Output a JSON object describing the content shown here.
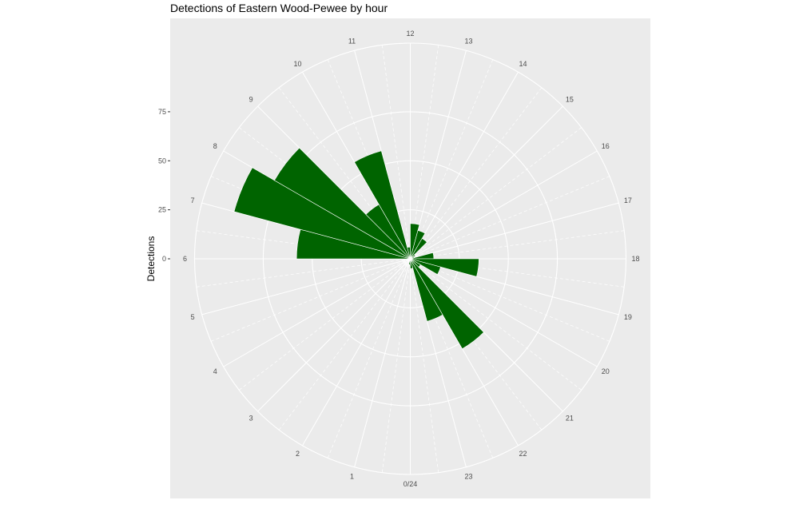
{
  "chart_data": {
    "type": "bar",
    "coord": "polar",
    "title": "Detections of Eastern Wood-Pewee by hour",
    "ylabel": "Detections",
    "xlabel": "",
    "categories": [
      "0/24",
      "1",
      "2",
      "3",
      "4",
      "5",
      "6",
      "7",
      "8",
      "9",
      "10",
      "11",
      "12",
      "13",
      "14",
      "15",
      "16",
      "17",
      "18",
      "19",
      "20",
      "21",
      "22",
      "23"
    ],
    "x": [
      0,
      1,
      2,
      3,
      4,
      5,
      6,
      7,
      8,
      9,
      10,
      11,
      12,
      13,
      14,
      15,
      16,
      17,
      18,
      19,
      20,
      21,
      22,
      23,
      24
    ],
    "values": [
      3,
      0,
      0,
      0,
      0,
      0,
      58,
      93,
      80,
      32,
      57,
      6,
      18,
      15,
      12,
      3,
      2,
      12,
      35,
      16,
      6,
      53,
      33,
      5
    ],
    "yticks": [
      0,
      25,
      50,
      75
    ],
    "ylim": [
      0,
      110
    ],
    "fill_color": "#006400",
    "panel_color": "#ebebeb",
    "grid_color": "#ffffff",
    "grid": true,
    "legend": "none"
  }
}
